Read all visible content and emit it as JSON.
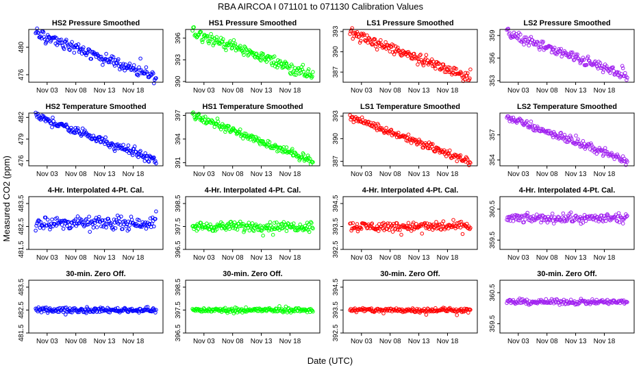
{
  "figure": {
    "title": "RBA    AIRCOA I    071101 to 071130    Calibration Values",
    "xlabel": "Date (UTC)",
    "ylabel": "Measured CO2 (ppm)"
  },
  "chart_data": [
    {
      "type": "scatter",
      "title": "HS2 Pressure Smoothed",
      "color": "#0000ff",
      "ylim": [
        474.9,
        482.6
      ],
      "yticks": [
        476,
        480
      ],
      "yticklabels": [
        "476",
        "480"
      ],
      "x": [
        1,
        22
      ],
      "y": [
        482,
        475.6
      ],
      "noise": 0.3,
      "wave": 0.35,
      "xticks": [
        "Nov 03",
        "Nov 08",
        "Nov 13",
        "Nov 18"
      ]
    },
    {
      "type": "scatter",
      "title": "HS1 Pressure Smoothed",
      "color": "#00ff00",
      "ylim": [
        389.9,
        397.2
      ],
      "yticks": [
        390,
        393,
        396
      ],
      "yticklabels": [
        "390",
        "393",
        "396"
      ],
      "x": [
        1,
        22
      ],
      "y": [
        396.9,
        390.8
      ],
      "noise": 0.3,
      "wave": 0.3,
      "xticks": [
        "Nov 03",
        "Nov 08",
        "Nov 13",
        "Nov 18"
      ]
    },
    {
      "type": "scatter",
      "title": "LS1 Pressure Smoothed",
      "color": "#ff0000",
      "ylim": [
        385.5,
        393.3
      ],
      "yticks": [
        387,
        390,
        393
      ],
      "yticklabels": [
        "387",
        "390",
        "393"
      ],
      "x": [
        1,
        22
      ],
      "y": [
        392.8,
        386.2
      ],
      "noise": 0.3,
      "wave": 0.35,
      "xticks": [
        "Nov 03",
        "Nov 08",
        "Nov 13",
        "Nov 18"
      ]
    },
    {
      "type": "scatter",
      "title": "LS2 Pressure Smoothed",
      "color": "#a020f0",
      "ylim": [
        352.8,
        359.8
      ],
      "yticks": [
        353,
        356,
        359
      ],
      "yticklabels": [
        "353",
        "356",
        "359"
      ],
      "x": [
        1,
        22
      ],
      "y": [
        359.3,
        353.6
      ],
      "noise": 0.25,
      "wave": 0.25,
      "xticks": [
        "Nov 03",
        "Nov 08",
        "Nov 13",
        "Nov 18"
      ]
    },
    {
      "type": "scatter",
      "title": "HS2 Temperature Smoothed",
      "color": "#0000ff",
      "ylim": [
        475.3,
        482.6
      ],
      "yticks": [
        476,
        479,
        482
      ],
      "yticklabels": [
        "476",
        "479",
        "482"
      ],
      "x": [
        1,
        22
      ],
      "y": [
        482.2,
        476
      ],
      "noise": 0.25,
      "wave": 0.2,
      "xticks": [
        "Nov 03",
        "Nov 08",
        "Nov 13",
        "Nov 18"
      ]
    },
    {
      "type": "scatter",
      "title": "HS1 Temperature Smoothed",
      "color": "#00ff00",
      "ylim": [
        390.6,
        397.3
      ],
      "yticks": [
        391,
        394,
        397
      ],
      "yticklabels": [
        "391",
        "394",
        "397"
      ],
      "x": [
        1,
        22
      ],
      "y": [
        397,
        391.2
      ],
      "noise": 0.2,
      "wave": 0.15,
      "xticks": [
        "Nov 03",
        "Nov 08",
        "Nov 13",
        "Nov 18"
      ]
    },
    {
      "type": "scatter",
      "title": "LS1 Temperature Smoothed",
      "color": "#ff0000",
      "ylim": [
        386.4,
        393.4
      ],
      "yticks": [
        387,
        390,
        393
      ],
      "yticklabels": [
        "387",
        "390",
        "393"
      ],
      "x": [
        1,
        22
      ],
      "y": [
        392.9,
        386.9
      ],
      "noise": 0.2,
      "wave": 0.15,
      "xticks": [
        "Nov 03",
        "Nov 08",
        "Nov 13",
        "Nov 18"
      ]
    },
    {
      "type": "scatter",
      "title": "LS2 Temperature Smoothed",
      "color": "#a020f0",
      "ylim": [
        353.3,
        359.6
      ],
      "yticks": [
        354,
        357
      ],
      "yticklabels": [
        "354",
        "357"
      ],
      "x": [
        1,
        22
      ],
      "y": [
        359.1,
        353.9
      ],
      "noise": 0.2,
      "wave": 0.15,
      "xticks": [
        "Nov 03",
        "Nov 08",
        "Nov 13",
        "Nov 18"
      ]
    },
    {
      "type": "scatter",
      "title": "4-Hr. Interpolated 4-Pt. Cal.",
      "color": "#0000ff",
      "ylim": [
        481.5,
        483.8
      ],
      "yticks": [
        481.5,
        482.5,
        483.5
      ],
      "yticklabels": [
        "481.5",
        "482.5",
        "483.5"
      ],
      "x": [
        1,
        22
      ],
      "y": [
        482.65,
        482.65
      ],
      "noise": 0.12,
      "wave": 0,
      "xticks": [
        "Nov 03",
        "Nov 08",
        "Nov 13",
        "Nov 18"
      ]
    },
    {
      "type": "scatter",
      "title": "4-Hr. Interpolated 4-Pt. Cal.",
      "color": "#00ff00",
      "ylim": [
        396.5,
        398.8
      ],
      "yticks": [
        396.5,
        397.5,
        398.5
      ],
      "yticklabels": [
        "396.5",
        "397.5",
        "398.5"
      ],
      "x": [
        1,
        22
      ],
      "y": [
        397.5,
        397.5
      ],
      "noise": 0.1,
      "wave": 0,
      "xticks": [
        "Nov 03",
        "Nov 08",
        "Nov 13",
        "Nov 18"
      ]
    },
    {
      "type": "scatter",
      "title": "4-Hr. Interpolated 4-Pt. Cal.",
      "color": "#ff0000",
      "ylim": [
        392.5,
        394.8
      ],
      "yticks": [
        392.5,
        393.5,
        394.5
      ],
      "yticklabels": [
        "392.5",
        "393.5",
        "394.5"
      ],
      "x": [
        1,
        22
      ],
      "y": [
        393.5,
        393.5
      ],
      "noise": 0.1,
      "wave": 0,
      "xticks": [
        "Nov 03",
        "Nov 08",
        "Nov 13",
        "Nov 18"
      ]
    },
    {
      "type": "scatter",
      "title": "4-Hr. Interpolated 4-Pt. Cal.",
      "color": "#a020f0",
      "ylim": [
        359.2,
        360.9
      ],
      "yticks": [
        359.5,
        360.5
      ],
      "yticklabels": [
        "359.5",
        "360.5"
      ],
      "x": [
        1,
        22
      ],
      "y": [
        360.2,
        360.2
      ],
      "noise": 0.07,
      "wave": 0,
      "xticks": [
        "Nov 03",
        "Nov 08",
        "Nov 13",
        "Nov 18"
      ]
    },
    {
      "type": "scatter",
      "title": "30-min. Zero Off.",
      "color": "#0000ff",
      "ylim": [
        481.5,
        483.8
      ],
      "yticks": [
        481.5,
        482.5,
        483.5
      ],
      "yticklabels": [
        "481.5",
        "482.5",
        "483.5"
      ],
      "x": [
        1,
        22
      ],
      "y": [
        482.5,
        482.5
      ],
      "noise": 0.05,
      "wave": 0,
      "xticks": [
        "Nov 03",
        "Nov 08",
        "Nov 13",
        "Nov 18"
      ]
    },
    {
      "type": "scatter",
      "title": "30-min. Zero Off.",
      "color": "#00ff00",
      "ylim": [
        396.5,
        398.8
      ],
      "yticks": [
        396.5,
        397.5,
        398.5
      ],
      "yticklabels": [
        "396.5",
        "397.5",
        "398.5"
      ],
      "x": [
        1,
        22
      ],
      "y": [
        397.5,
        397.5
      ],
      "noise": 0.05,
      "wave": 0,
      "xticks": [
        "Nov 03",
        "Nov 08",
        "Nov 13",
        "Nov 18"
      ]
    },
    {
      "type": "scatter",
      "title": "30-min. Zero Off.",
      "color": "#ff0000",
      "ylim": [
        392.5,
        394.8
      ],
      "yticks": [
        392.5,
        393.5,
        394.5
      ],
      "yticklabels": [
        "392.5",
        "393.5",
        "394.5"
      ],
      "x": [
        1,
        22
      ],
      "y": [
        393.5,
        393.5
      ],
      "noise": 0.05,
      "wave": 0,
      "xticks": [
        "Nov 03",
        "Nov 08",
        "Nov 13",
        "Nov 18"
      ]
    },
    {
      "type": "scatter",
      "title": "30-min. Zero Off.",
      "color": "#a020f0",
      "ylim": [
        359.2,
        360.9
      ],
      "yticks": [
        359.5,
        360.5
      ],
      "yticklabels": [
        "359.5",
        "360.5"
      ],
      "x": [
        1,
        22
      ],
      "y": [
        360.2,
        360.2
      ],
      "noise": 0.04,
      "wave": 0,
      "xticks": [
        "Nov 03",
        "Nov 08",
        "Nov 13",
        "Nov 18"
      ]
    }
  ]
}
